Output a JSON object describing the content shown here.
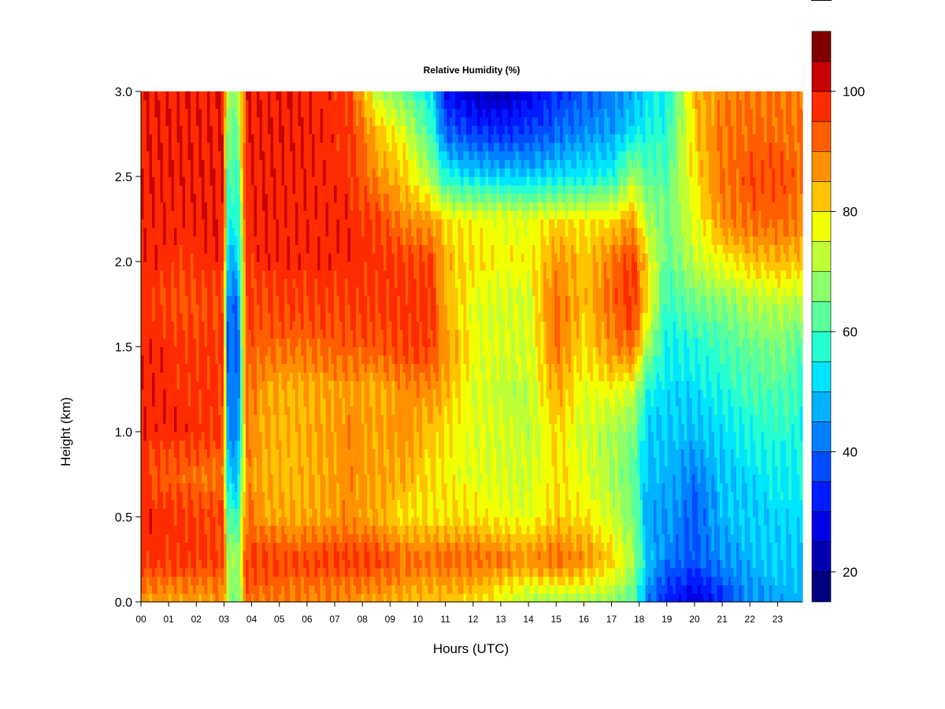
{
  "chart_data": {
    "type": "heatmap",
    "title": "Relative Humidity (%)",
    "xlabel": "Hours (UTC)",
    "ylabel": "Height (km)",
    "xlim": [
      0,
      23.9
    ],
    "ylim": [
      0,
      3
    ],
    "x_ticks": [
      "00",
      "01",
      "02",
      "03",
      "04",
      "05",
      "06",
      "07",
      "08",
      "09",
      "10",
      "11",
      "12",
      "13",
      "14",
      "15",
      "16",
      "17",
      "18",
      "19",
      "20",
      "21",
      "22",
      "23"
    ],
    "y_ticks": [
      "0.0",
      "0.5",
      "1.0",
      "1.5",
      "2.0",
      "2.5",
      "3.0"
    ],
    "colorbar": {
      "min": 15,
      "max": 100,
      "step": 5,
      "ticks": [
        "20",
        "40",
        "60",
        "80",
        "100"
      ],
      "colors": [
        "#00007f",
        "#0000b2",
        "#0000e5",
        "#001bff",
        "#004cff",
        "#007fff",
        "#00b2ff",
        "#00e5ff",
        "#26ffd1",
        "#59ff9d",
        "#8cff6a",
        "#bfff37",
        "#f2ff00",
        "#ffc400",
        "#ff9100",
        "#ff5e00",
        "#ff2b00",
        "#c80000",
        "#800000"
      ]
    },
    "rh_profiles": [
      {
        "hour": 0.0,
        "rh": [
          86,
          97,
          98,
          98,
          98,
          98,
          98,
          98,
          98,
          98,
          99,
          99,
          99
        ]
      },
      {
        "hour": 0.5,
        "rh": [
          86,
          97,
          98,
          93,
          98,
          98,
          98,
          96,
          98,
          98,
          99,
          99,
          99
        ]
      },
      {
        "hour": 1.5,
        "rh": [
          86,
          97,
          97,
          92,
          98,
          97,
          97,
          93,
          97,
          98,
          99,
          99,
          99
        ]
      },
      {
        "hour": 2.5,
        "rh": [
          86,
          96,
          96,
          90,
          97,
          97,
          97,
          94,
          98,
          99,
          99,
          99,
          99
        ]
      },
      {
        "hour": 3.0,
        "rh": [
          88,
          96,
          95,
          90,
          96,
          96,
          96,
          93,
          98,
          99,
          99,
          99,
          99
        ]
      },
      {
        "hour": 3.1,
        "rh": [
          70,
          72,
          62,
          52,
          45,
          44,
          40,
          42,
          50,
          58,
          62,
          66,
          70
        ]
      },
      {
        "hour": 3.5,
        "rh": [
          62,
          68,
          58,
          48,
          42,
          40,
          38,
          40,
          48,
          55,
          60,
          64,
          68
        ]
      },
      {
        "hour": 3.8,
        "rh": [
          92,
          95,
          91,
          88,
          90,
          92,
          93,
          95,
          97,
          98,
          98,
          99,
          99
        ]
      },
      {
        "hour": 4.5,
        "rh": [
          90,
          96,
          86,
          84,
          85,
          86,
          92,
          95,
          98,
          99,
          99,
          99,
          99
        ]
      },
      {
        "hour": 5.5,
        "rh": [
          89,
          95,
          84,
          83,
          83,
          84,
          91,
          96,
          98,
          98,
          98,
          99,
          99
        ]
      },
      {
        "hour": 6.5,
        "rh": [
          88,
          96,
          86,
          85,
          86,
          85,
          92,
          96,
          98,
          98,
          98,
          98,
          98
        ]
      },
      {
        "hour": 7.5,
        "rh": [
          87,
          96,
          88,
          88,
          88,
          87,
          93,
          96,
          98,
          98,
          97,
          97,
          97
        ]
      },
      {
        "hour": 8.5,
        "rh": [
          85,
          96,
          85,
          86,
          86,
          84,
          93,
          97,
          97,
          96,
          88,
          84,
          72
        ]
      },
      {
        "hour": 9.5,
        "rh": [
          84,
          92,
          80,
          85,
          88,
          88,
          96,
          97,
          96,
          88,
          82,
          76,
          64
        ]
      },
      {
        "hour": 10.5,
        "rh": [
          82,
          91,
          79,
          80,
          82,
          88,
          96,
          97,
          96,
          86,
          70,
          60,
          52
        ]
      },
      {
        "hour": 11.0,
        "rh": [
          82,
          92,
          80,
          78,
          80,
          84,
          88,
          84,
          84,
          80,
          56,
          40,
          30
        ]
      },
      {
        "hour": 12.0,
        "rh": [
          80,
          92,
          80,
          76,
          76,
          76,
          78,
          76,
          80,
          78,
          52,
          36,
          24
        ]
      },
      {
        "hour": 13.0,
        "rh": [
          76,
          90,
          78,
          74,
          74,
          72,
          75,
          74,
          78,
          77,
          50,
          35,
          22
        ]
      },
      {
        "hour": 14.0,
        "rh": [
          70,
          88,
          76,
          74,
          72,
          72,
          74,
          74,
          78,
          76,
          50,
          36,
          28
        ]
      },
      {
        "hour": 15.0,
        "rh": [
          70,
          92,
          82,
          80,
          80,
          86,
          90,
          92,
          88,
          80,
          52,
          40,
          34
        ]
      },
      {
        "hour": 16.0,
        "rh": [
          70,
          88,
          80,
          76,
          74,
          76,
          80,
          82,
          82,
          80,
          54,
          44,
          38
        ]
      },
      {
        "hour": 17.0,
        "rh": [
          68,
          82,
          74,
          70,
          70,
          78,
          88,
          92,
          90,
          80,
          56,
          46,
          42
        ]
      },
      {
        "hour": 17.8,
        "rh": [
          62,
          70,
          66,
          64,
          66,
          74,
          92,
          97,
          96,
          86,
          70,
          54,
          46
        ]
      },
      {
        "hour": 18.3,
        "rh": [
          42,
          50,
          46,
          48,
          50,
          56,
          70,
          80,
          80,
          70,
          62,
          56,
          52
        ]
      },
      {
        "hour": 19.0,
        "rh": [
          32,
          42,
          46,
          48,
          50,
          52,
          54,
          58,
          62,
          64,
          62,
          58,
          56
        ]
      },
      {
        "hour": 20.0,
        "rh": [
          26,
          38,
          38,
          42,
          48,
          52,
          56,
          64,
          72,
          76,
          80,
          82,
          84
        ]
      },
      {
        "hour": 21.0,
        "rh": [
          34,
          44,
          48,
          50,
          52,
          56,
          60,
          66,
          78,
          88,
          90,
          90,
          88
        ]
      },
      {
        "hour": 22.0,
        "rh": [
          44,
          48,
          50,
          52,
          56,
          60,
          64,
          70,
          82,
          92,
          94,
          92,
          90
        ]
      },
      {
        "hour": 23.0,
        "rh": [
          46,
          50,
          52,
          54,
          58,
          62,
          66,
          72,
          84,
          92,
          94,
          92,
          90
        ]
      },
      {
        "hour": 23.9,
        "rh": [
          48,
          50,
          52,
          54,
          56,
          58,
          62,
          70,
          82,
          90,
          92,
          90,
          88
        ]
      }
    ],
    "rh_heights_km": [
      0.0,
      0.25,
      0.5,
      0.75,
      1.0,
      1.25,
      1.5,
      1.75,
      2.0,
      2.25,
      2.5,
      2.75,
      3.0
    ]
  }
}
